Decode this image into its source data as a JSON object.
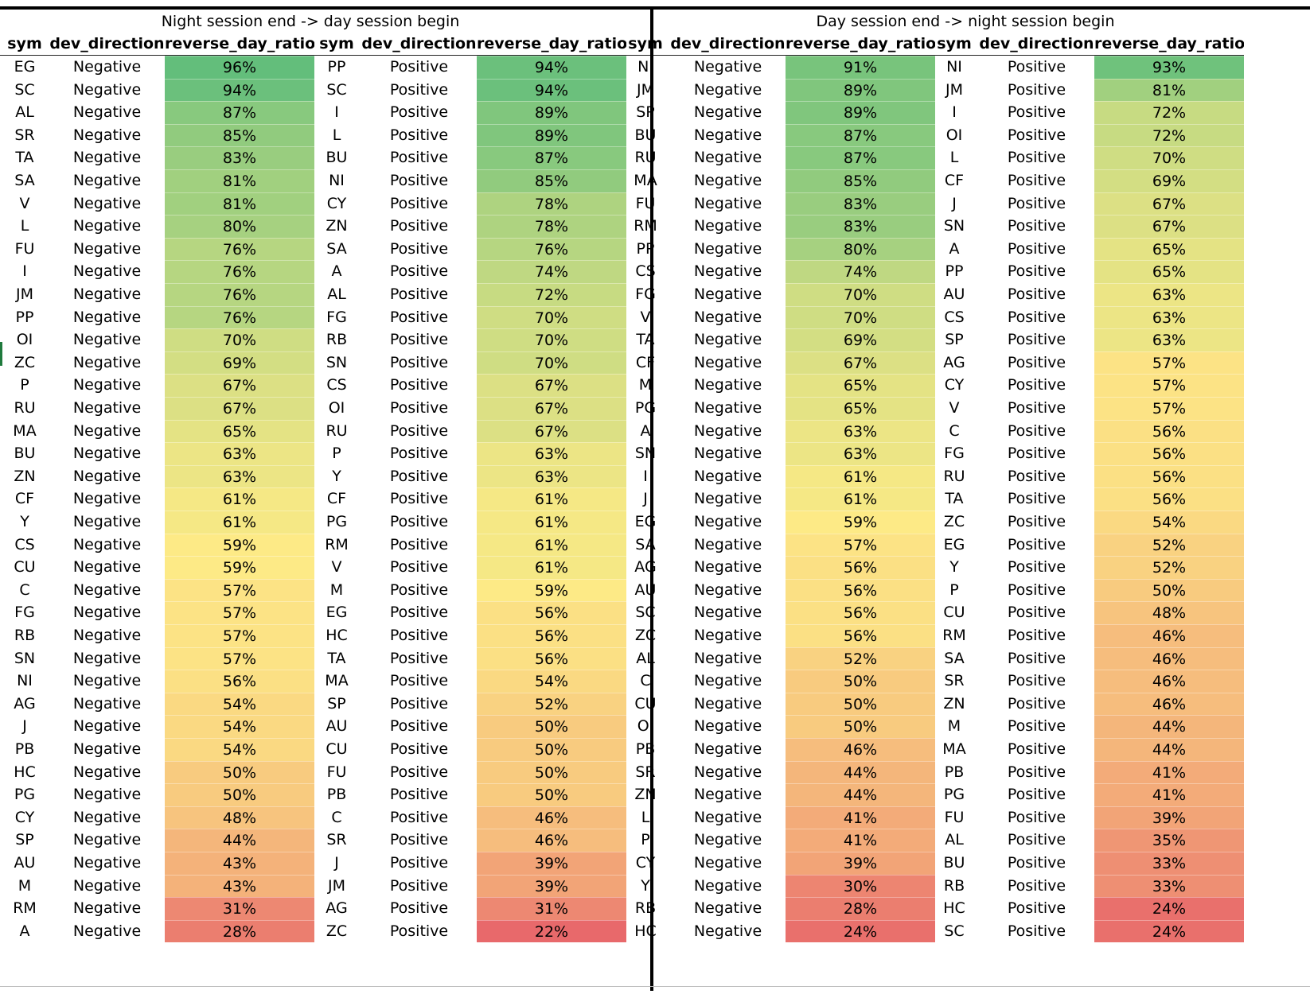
{
  "groups": [
    "Night session end -> day session begin",
    "Day session end -> night session begin"
  ],
  "headers": [
    "sym",
    "dev_direction",
    "reverse_day_ratio"
  ],
  "tables": [
    {
      "direction": "Negative",
      "rows": [
        [
          "EG",
          96
        ],
        [
          "SC",
          94
        ],
        [
          "AL",
          87
        ],
        [
          "SR",
          85
        ],
        [
          "TA",
          83
        ],
        [
          "SA",
          81
        ],
        [
          "V",
          81
        ],
        [
          "L",
          80
        ],
        [
          "FU",
          76
        ],
        [
          "I",
          76
        ],
        [
          "JM",
          76
        ],
        [
          "PP",
          76
        ],
        [
          "OI",
          70
        ],
        [
          "ZC",
          69
        ],
        [
          "P",
          67
        ],
        [
          "RU",
          67
        ],
        [
          "MA",
          65
        ],
        [
          "BU",
          63
        ],
        [
          "ZN",
          63
        ],
        [
          "CF",
          61
        ],
        [
          "Y",
          61
        ],
        [
          "CS",
          59
        ],
        [
          "CU",
          59
        ],
        [
          "C",
          57
        ],
        [
          "FG",
          57
        ],
        [
          "RB",
          57
        ],
        [
          "SN",
          57
        ],
        [
          "NI",
          56
        ],
        [
          "AG",
          54
        ],
        [
          "J",
          54
        ],
        [
          "PB",
          54
        ],
        [
          "HC",
          50
        ],
        [
          "PG",
          50
        ],
        [
          "CY",
          48
        ],
        [
          "SP",
          44
        ],
        [
          "AU",
          43
        ],
        [
          "M",
          43
        ],
        [
          "RM",
          31
        ],
        [
          "A",
          28
        ]
      ]
    },
    {
      "direction": "Positive",
      "rows": [
        [
          "PP",
          94
        ],
        [
          "SC",
          94
        ],
        [
          "I",
          89
        ],
        [
          "L",
          89
        ],
        [
          "BU",
          87
        ],
        [
          "NI",
          85
        ],
        [
          "CY",
          78
        ],
        [
          "ZN",
          78
        ],
        [
          "SA",
          76
        ],
        [
          "A",
          74
        ],
        [
          "AL",
          72
        ],
        [
          "FG",
          70
        ],
        [
          "RB",
          70
        ],
        [
          "SN",
          70
        ],
        [
          "CS",
          67
        ],
        [
          "OI",
          67
        ],
        [
          "RU",
          67
        ],
        [
          "P",
          63
        ],
        [
          "Y",
          63
        ],
        [
          "CF",
          61
        ],
        [
          "PG",
          61
        ],
        [
          "RM",
          61
        ],
        [
          "V",
          61
        ],
        [
          "M",
          59
        ],
        [
          "EG",
          56
        ],
        [
          "HC",
          56
        ],
        [
          "TA",
          56
        ],
        [
          "MA",
          54
        ],
        [
          "SP",
          52
        ],
        [
          "AU",
          50
        ],
        [
          "CU",
          50
        ],
        [
          "FU",
          50
        ],
        [
          "PB",
          50
        ],
        [
          "C",
          46
        ],
        [
          "SR",
          46
        ],
        [
          "J",
          39
        ],
        [
          "JM",
          39
        ],
        [
          "AG",
          31
        ],
        [
          "ZC",
          22
        ]
      ]
    },
    {
      "direction": "Negative",
      "rows": [
        [
          "NI",
          91
        ],
        [
          "JM",
          89
        ],
        [
          "SP",
          89
        ],
        [
          "BU",
          87
        ],
        [
          "RU",
          87
        ],
        [
          "MA",
          85
        ],
        [
          "FU",
          83
        ],
        [
          "RM",
          83
        ],
        [
          "PP",
          80
        ],
        [
          "CS",
          74
        ],
        [
          "FG",
          70
        ],
        [
          "V",
          70
        ],
        [
          "TA",
          69
        ],
        [
          "CF",
          67
        ],
        [
          "M",
          65
        ],
        [
          "PG",
          65
        ],
        [
          "A",
          63
        ],
        [
          "SN",
          63
        ],
        [
          "I",
          61
        ],
        [
          "J",
          61
        ],
        [
          "EG",
          59
        ],
        [
          "SA",
          57
        ],
        [
          "AG",
          56
        ],
        [
          "AU",
          56
        ],
        [
          "SC",
          56
        ],
        [
          "ZC",
          56
        ],
        [
          "AL",
          52
        ],
        [
          "C",
          50
        ],
        [
          "CU",
          50
        ],
        [
          "OI",
          50
        ],
        [
          "PB",
          46
        ],
        [
          "SR",
          44
        ],
        [
          "ZN",
          44
        ],
        [
          "L",
          41
        ],
        [
          "P",
          41
        ],
        [
          "CY",
          39
        ],
        [
          "Y",
          30
        ],
        [
          "RB",
          28
        ],
        [
          "HC",
          24
        ]
      ]
    },
    {
      "direction": "Positive",
      "rows": [
        [
          "NI",
          93
        ],
        [
          "JM",
          81
        ],
        [
          "I",
          72
        ],
        [
          "OI",
          72
        ],
        [
          "L",
          70
        ],
        [
          "CF",
          69
        ],
        [
          "J",
          67
        ],
        [
          "SN",
          67
        ],
        [
          "A",
          65
        ],
        [
          "PP",
          65
        ],
        [
          "AU",
          63
        ],
        [
          "CS",
          63
        ],
        [
          "SP",
          63
        ],
        [
          "AG",
          57
        ],
        [
          "CY",
          57
        ],
        [
          "V",
          57
        ],
        [
          "C",
          56
        ],
        [
          "FG",
          56
        ],
        [
          "RU",
          56
        ],
        [
          "TA",
          56
        ],
        [
          "ZC",
          54
        ],
        [
          "EG",
          52
        ],
        [
          "Y",
          52
        ],
        [
          "P",
          50
        ],
        [
          "CU",
          48
        ],
        [
          "RM",
          46
        ],
        [
          "SA",
          46
        ],
        [
          "SR",
          46
        ],
        [
          "ZN",
          46
        ],
        [
          "M",
          44
        ],
        [
          "MA",
          44
        ],
        [
          "PB",
          41
        ],
        [
          "PG",
          41
        ],
        [
          "FU",
          39
        ],
        [
          "AL",
          35
        ],
        [
          "BU",
          33
        ],
        [
          "RB",
          33
        ],
        [
          "HC",
          24
        ],
        [
          "SC",
          24
        ]
      ]
    }
  ],
  "color_scale": {
    "low": "#e8696b",
    "mid": "#fdea86",
    "high": "#63be7b"
  }
}
